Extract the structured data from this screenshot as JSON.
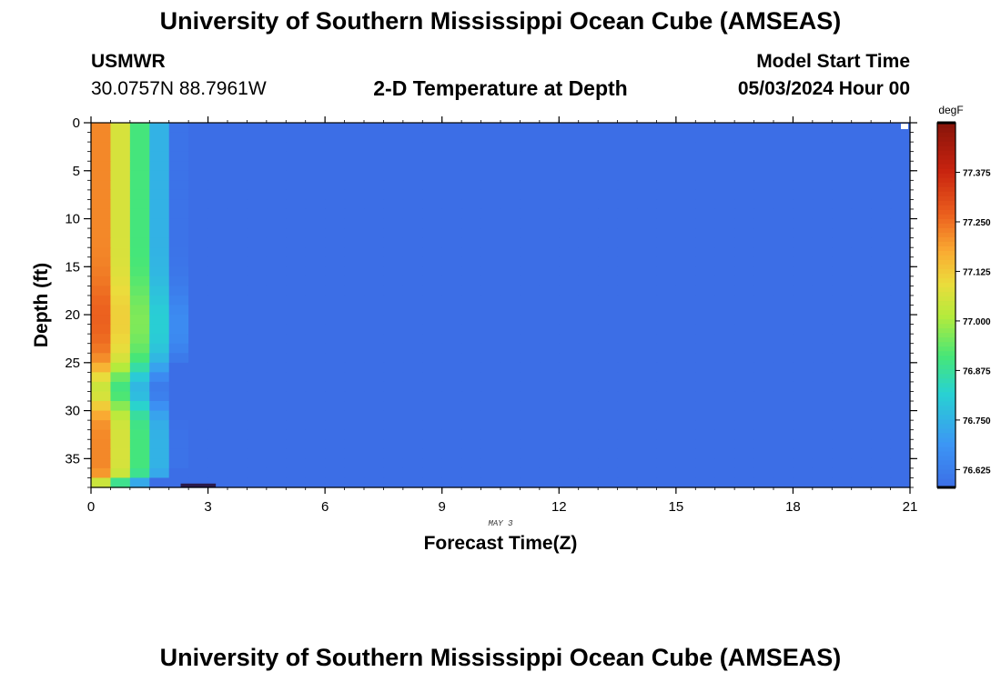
{
  "header": {
    "title": "University of Southern Mississippi Ocean Cube (AMSEAS)",
    "station": "USMWR",
    "coords": "30.0757N  88.7961W",
    "subtitle": "2-D Temperature at Depth",
    "start_label": "Model Start Time",
    "start_value": "05/03/2024 Hour 00"
  },
  "footer": {
    "title": "University of Southern Mississippi Ocean Cube (AMSEAS)"
  },
  "chart_data": {
    "type": "heatmap",
    "title": "2-D Temperature at Depth",
    "xlabel": "Forecast Time(Z)",
    "x_sublabel": "MAY 3",
    "ylabel": "Depth (ft)",
    "xlim": [
      0,
      21
    ],
    "ylim": [
      0,
      38
    ],
    "x_ticks": [
      0,
      3,
      6,
      9,
      12,
      15,
      18,
      21
    ],
    "x_tick_labels": [
      "0",
      "3",
      "6",
      "9",
      "12",
      "15",
      "18",
      "21"
    ],
    "y_ticks": [
      0,
      5,
      10,
      15,
      20,
      25,
      30,
      35
    ],
    "y_tick_labels": [
      "0",
      "5",
      "10",
      "15",
      "20",
      "25",
      "30",
      "35"
    ],
    "colorbar": {
      "unit": "degF",
      "min": 76.58,
      "max": 77.5,
      "ticks": [
        76.625,
        76.75,
        76.875,
        77.0,
        77.125,
        77.25,
        77.375
      ],
      "tick_labels": [
        "76.625",
        "76.750",
        "76.875",
        "77.000",
        "77.125",
        "77.250",
        "77.375"
      ]
    },
    "grid": false
  }
}
